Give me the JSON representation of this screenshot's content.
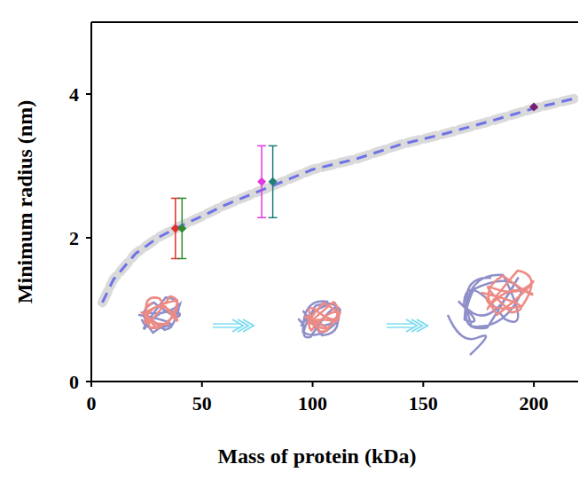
{
  "chart_data": {
    "type": "scatter",
    "xlabel": "Mass of protein (kDa)",
    "ylabel": "Minimum radius (nm)",
    "xlim": [
      0,
      220
    ],
    "ylim": [
      0,
      5
    ],
    "xticks": [
      0,
      50,
      100,
      150,
      200
    ],
    "yticks": [
      0,
      2,
      4
    ],
    "series": [
      {
        "type": "line",
        "line_style": "dashed",
        "color": "#6f73e6",
        "x": [
          5,
          10,
          20,
          30,
          40,
          50,
          60,
          80,
          100,
          120,
          140,
          160,
          180,
          200,
          220
        ],
        "values": [
          1.1,
          1.42,
          1.78,
          2.0,
          2.16,
          2.3,
          2.45,
          2.7,
          2.95,
          3.1,
          3.3,
          3.45,
          3.62,
          3.8,
          3.95
        ]
      },
      {
        "type": "scatter",
        "marker": "diamond",
        "color": "#e0302a",
        "x": [
          38
        ],
        "values": [
          2.13
        ],
        "error": [
          0.42
        ]
      },
      {
        "type": "scatter",
        "marker": "diamond",
        "color": "#2e8b2e",
        "x": [
          41
        ],
        "values": [
          2.13
        ],
        "error": [
          0.42
        ]
      },
      {
        "type": "scatter",
        "marker": "diamond",
        "color": "#e637e0",
        "x": [
          77
        ],
        "values": [
          2.78
        ],
        "error": [
          0.5
        ]
      },
      {
        "type": "scatter",
        "marker": "diamond",
        "color": "#1f7f74",
        "x": [
          82
        ],
        "values": [
          2.78
        ],
        "error": [
          0.5
        ]
      },
      {
        "type": "scatter",
        "marker": "diamond",
        "color": "#7a1f6e",
        "x": [
          200
        ],
        "values": [
          3.82
        ],
        "error": [
          null
        ]
      }
    ]
  }
}
